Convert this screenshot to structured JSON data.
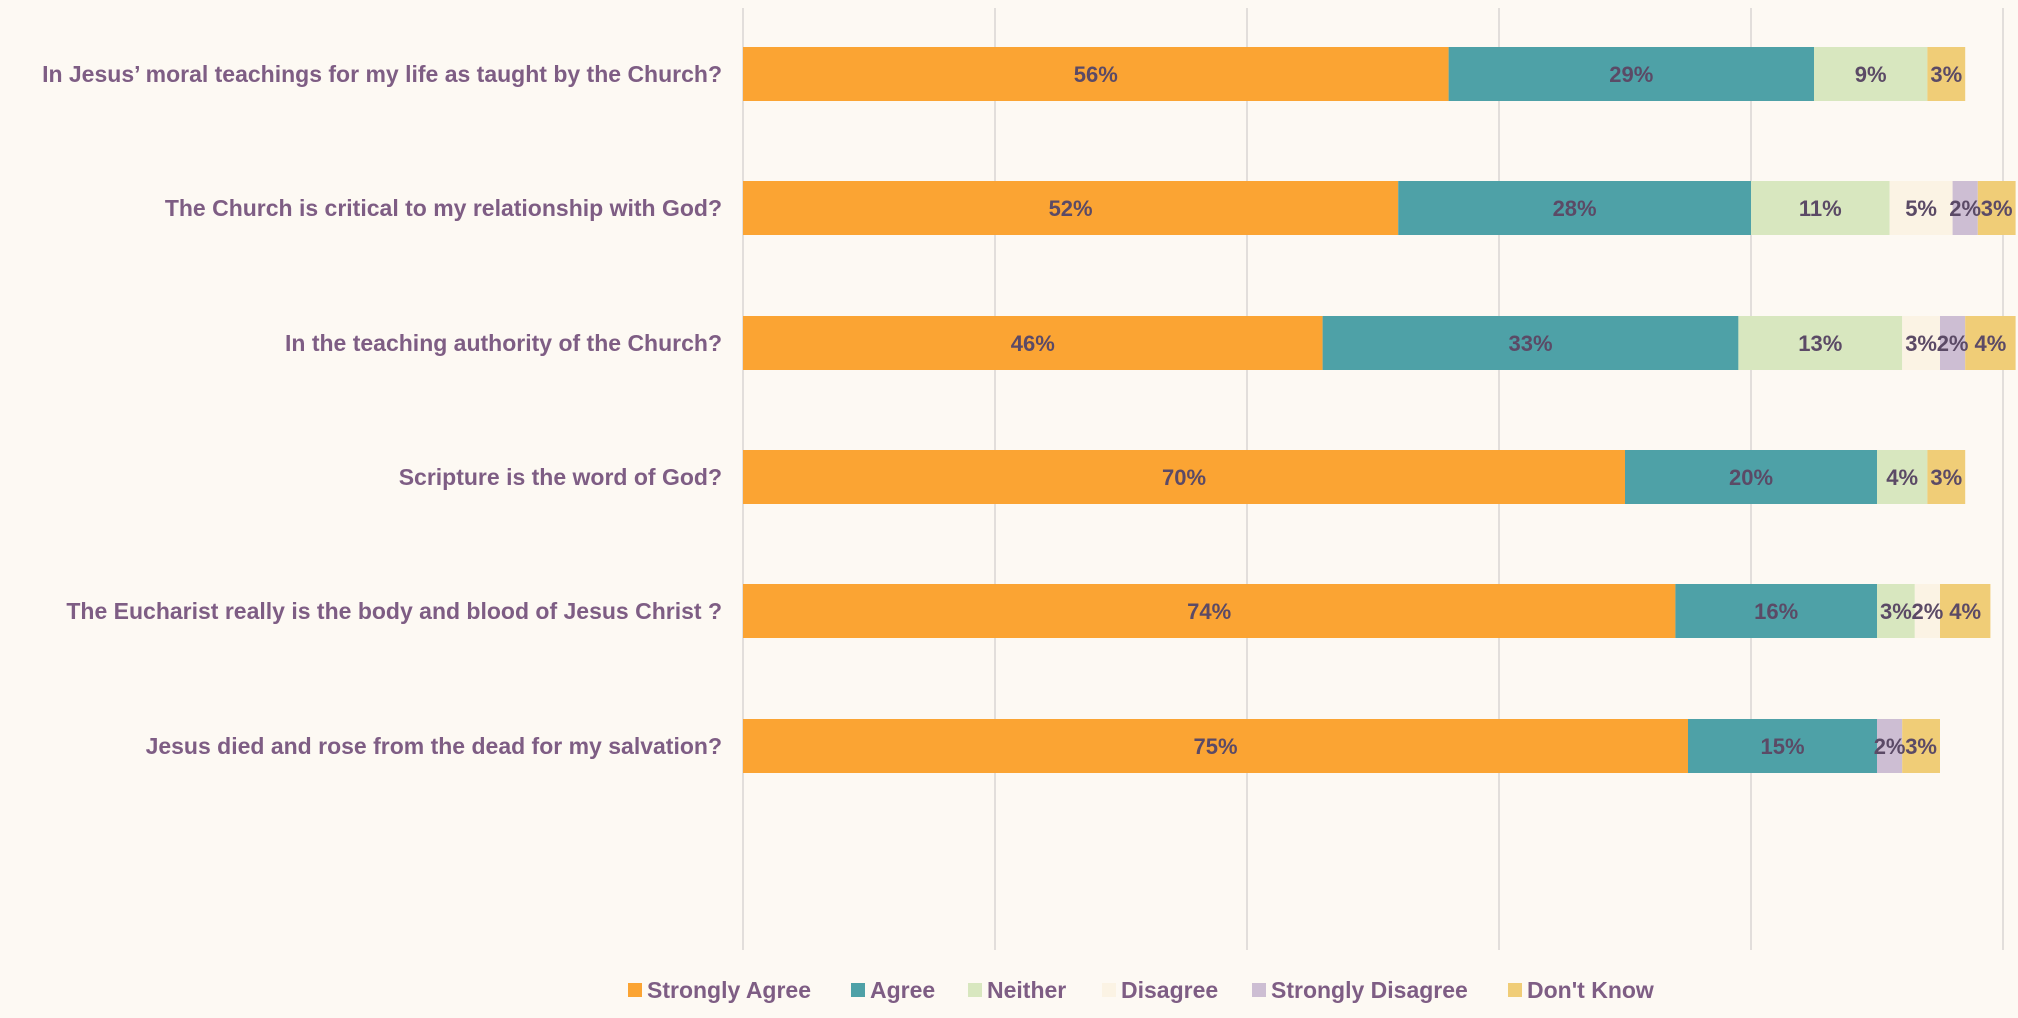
{
  "chart_data": {
    "type": "bar",
    "orientation": "horizontal",
    "stacked": true,
    "title": "",
    "xlabel": "",
    "ylabel": "",
    "xlim": [
      0,
      100
    ],
    "grid": true,
    "legend_position": "bottom",
    "categories": [
      "In Jesus’ moral teachings for my life as taught by the Church?",
      "The Church is critical to my relationship with God?",
      "In the teaching authority of the Church?",
      "Scripture is the word of God?",
      "The Eucharist really is the body and blood of Jesus Christ ?",
      "Jesus died and rose from the dead for my salvation?"
    ],
    "series": [
      {
        "name": "Strongly Agree",
        "color": "#fba433",
        "values": [
          56,
          52,
          46,
          70,
          74,
          75
        ],
        "labels": [
          "56%",
          "52%",
          "46%",
          "70%",
          "74%",
          "75%"
        ]
      },
      {
        "name": "Agree",
        "color": "#4ea1a7",
        "values": [
          29,
          28,
          33,
          20,
          16,
          15
        ],
        "labels": [
          "29%",
          "28%",
          "33%",
          "20%",
          "16%",
          "15%"
        ]
      },
      {
        "name": "Neither",
        "color": "#d8e7bf",
        "values": [
          9,
          11,
          13,
          4,
          3,
          0
        ],
        "labels": [
          "9%",
          "11%",
          "13%",
          "4%",
          "3%",
          ""
        ]
      },
      {
        "name": "Disagree",
        "color": "#fbf3e4",
        "values": [
          0,
          5,
          3,
          0,
          2,
          0
        ],
        "labels": [
          "",
          "5%",
          "3%",
          "",
          "2%",
          ""
        ]
      },
      {
        "name": "Strongly Disagree",
        "color": "#cdbed3",
        "values": [
          0,
          2,
          2,
          0,
          0,
          2
        ],
        "labels": [
          "",
          "2%",
          "2%",
          "",
          "",
          "2%"
        ]
      },
      {
        "name": "Don't Know",
        "color": "#f0cd77",
        "values": [
          3,
          3,
          4,
          3,
          4,
          3
        ],
        "labels": [
          "3%",
          "3%",
          "4%",
          "3%",
          "4%",
          "3%"
        ]
      }
    ],
    "colors": {
      "background": "#fdf9f3",
      "gridline": "#d9d6d3",
      "category_text": "#7e5d84",
      "value_text": "#5b4a66"
    }
  }
}
